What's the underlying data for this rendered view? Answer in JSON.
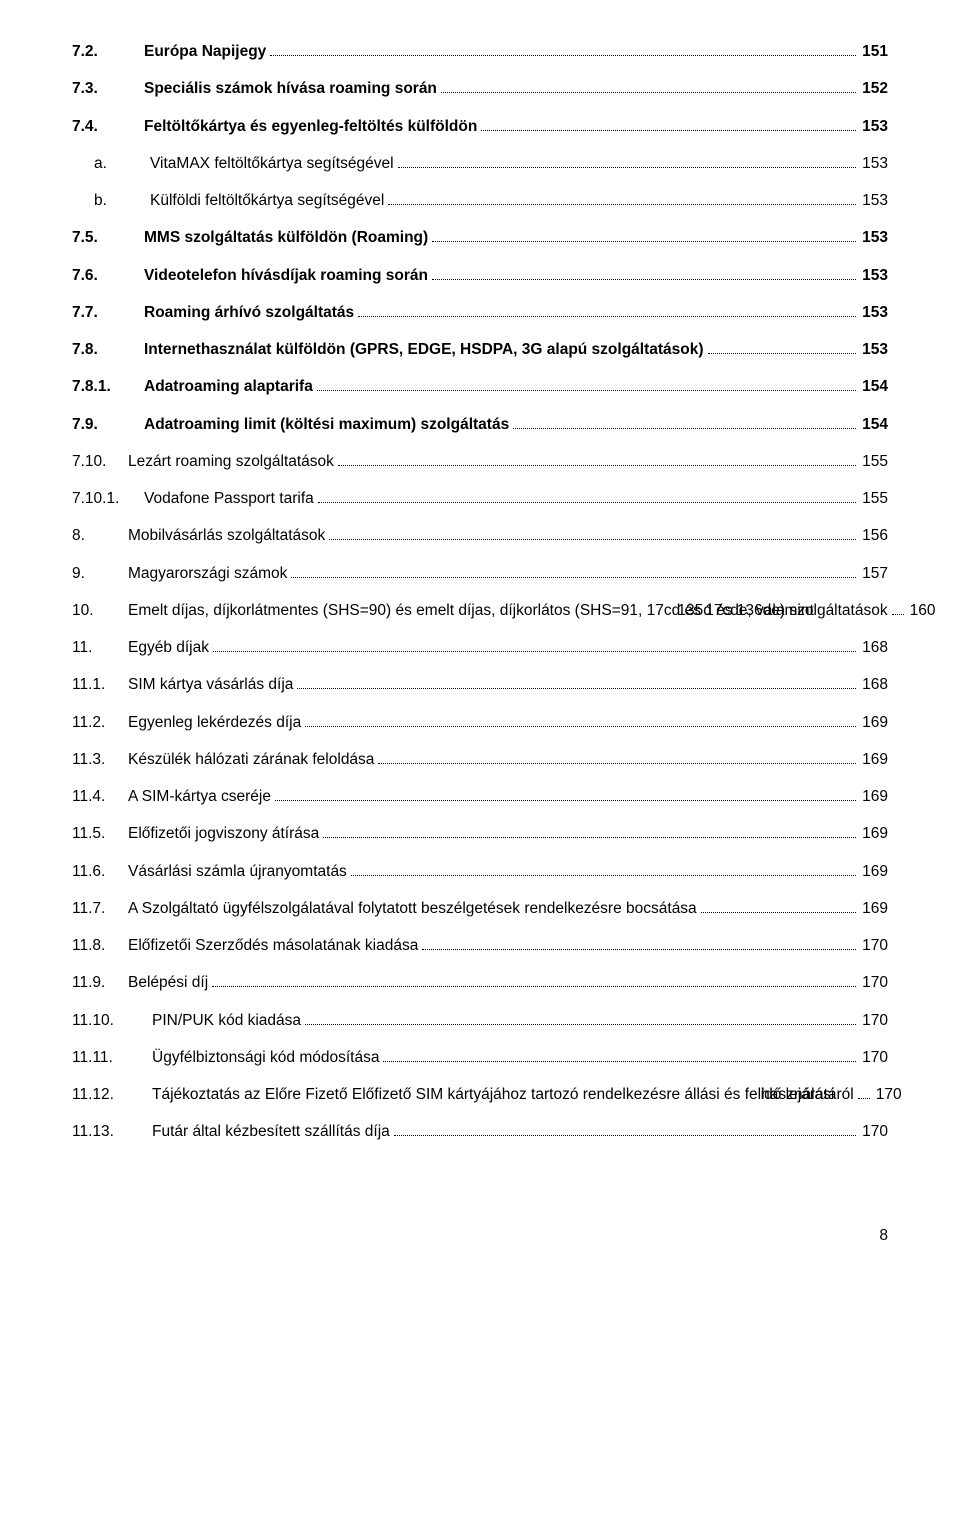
{
  "entries": [
    {
      "num": "7.2.",
      "label": "Európa Napijegy",
      "page": "151",
      "bold": true,
      "indent": 0,
      "numClass": "wide"
    },
    {
      "num": "7.3.",
      "label": "Speciális számok hívása roaming során",
      "page": "152",
      "bold": true,
      "indent": 0,
      "numClass": "wide"
    },
    {
      "num": "7.4.",
      "label": "Feltöltőkártya és egyenleg-feltöltés külföldön",
      "page": "153",
      "bold": true,
      "indent": 0,
      "numClass": "wide"
    },
    {
      "num": "a.",
      "label": "VitaMAX feltöltőkártya segítségével",
      "page": "153",
      "bold": false,
      "indent": 1,
      "numClass": ""
    },
    {
      "num": "b.",
      "label": "Külföldi feltöltőkártya segítségével",
      "page": "153",
      "bold": false,
      "indent": 1,
      "numClass": ""
    },
    {
      "num": "7.5.",
      "label": "MMS szolgáltatás külföldön (Roaming)",
      "page": "153",
      "bold": true,
      "indent": 0,
      "numClass": "wide"
    },
    {
      "num": "7.6.",
      "label": "Videotelefon hívásdíjak roaming során",
      "page": "153",
      "bold": true,
      "indent": 0,
      "numClass": "wide"
    },
    {
      "num": "7.7.",
      "label": "Roaming árhívó szolgáltatás",
      "page": "153",
      "bold": true,
      "indent": 0,
      "numClass": "wide"
    },
    {
      "num": "7.8.",
      "label": "Internethasználat külföldön (GPRS, EDGE, HSDPA, 3G alapú szolgáltatások)",
      "page": "153",
      "bold": true,
      "indent": 0,
      "numClass": "wide"
    },
    {
      "num": "7.8.1.",
      "label": "Adatroaming alaptarifa",
      "page": "154",
      "bold": true,
      "indent": 0,
      "numClass": "wide"
    },
    {
      "num": "7.9.",
      "label": "Adatroaming limit (költési maximum) szolgáltatás",
      "page": "154",
      "bold": true,
      "indent": 0,
      "numClass": "wide"
    },
    {
      "num": "7.10.",
      "label": "Lezárt roaming szolgáltatások",
      "page": "155",
      "bold": false,
      "indent": 0,
      "numClass": ""
    },
    {
      "num": "7.10.1.",
      "label": "Vodafone Passport tarifa",
      "page": "155",
      "bold": false,
      "indent": 0,
      "numClass": "wide"
    },
    {
      "num": "8.",
      "label": "Mobilvásárlás szolgáltatások",
      "page": "156",
      "bold": false,
      "indent": 0,
      "numClass": ""
    },
    {
      "num": "9.",
      "label": "Magyarországi számok",
      "page": "157",
      "bold": false,
      "indent": 0,
      "numClass": ""
    },
    {
      "num": "10.",
      "label_line1": "Emelt díjas, díjkorlátmentes (SHS=90) és emelt díjas, díjkorlátos (SHS=91, 17cd és 17cde, valamint",
      "label_line2": "135d és 136de) szolgáltatások",
      "page": "160",
      "bold": false,
      "indent": 0,
      "numClass": "",
      "wrap": true
    },
    {
      "num": "11.",
      "label": "Egyéb díjak",
      "page": "168",
      "bold": false,
      "indent": 0,
      "numClass": ""
    },
    {
      "num": "11.1.",
      "label": "SIM kártya vásárlás díja",
      "page": "168",
      "bold": false,
      "indent": 0,
      "numClass": ""
    },
    {
      "num": "11.2.",
      "label": "Egyenleg lekérdezés díja",
      "page": "169",
      "bold": false,
      "indent": 0,
      "numClass": ""
    },
    {
      "num": "11.3.",
      "label": "Készülék hálózati zárának feloldása",
      "page": "169",
      "bold": false,
      "indent": 0,
      "numClass": ""
    },
    {
      "num": "11.4.",
      "label": "A SIM-kártya cseréje",
      "page": "169",
      "bold": false,
      "indent": 0,
      "numClass": ""
    },
    {
      "num": "11.5.",
      "label": "Előfizetői jogviszony átírása",
      "page": "169",
      "bold": false,
      "indent": 0,
      "numClass": ""
    },
    {
      "num": "11.6.",
      "label": "Vásárlási számla újranyomtatás",
      "page": "169",
      "bold": false,
      "indent": 0,
      "numClass": ""
    },
    {
      "num": "11.7.",
      "label": "A Szolgáltató ügyfélszolgálatával folytatott beszélgetések rendelkezésre bocsátása",
      "page": "169",
      "bold": false,
      "indent": 0,
      "numClass": ""
    },
    {
      "num": "11.8.",
      "label": "Előfizetői Szerződés másolatának kiadása",
      "page": "170",
      "bold": false,
      "indent": 0,
      "numClass": ""
    },
    {
      "num": "11.9.",
      "label": "Belépési díj",
      "page": "170",
      "bold": false,
      "indent": 0,
      "numClass": ""
    },
    {
      "num": "11.10.",
      "label": "PIN/PUK kód kiadása",
      "page": "170",
      "bold": false,
      "indent": 0,
      "numClass": "xwide"
    },
    {
      "num": "11.11.",
      "label": "Ügyfélbiztonsági kód módosítása",
      "page": "170",
      "bold": false,
      "indent": 0,
      "numClass": "xwide"
    },
    {
      "num": "11.12.",
      "label_line1": "Tájékoztatás az Előre Fizető Előfizető SIM kártyájához tartozó rendelkezésre állási és felhasználási",
      "label_line2": "idő lejáratáról",
      "page": "170",
      "bold": false,
      "indent": 0,
      "numClass": "xwide",
      "wrap": true
    },
    {
      "num": "11.13.",
      "label": "Futár által kézbesített szállítás díja",
      "page": "170",
      "bold": false,
      "indent": 0,
      "numClass": "xwide"
    }
  ],
  "pageNumber": "8"
}
